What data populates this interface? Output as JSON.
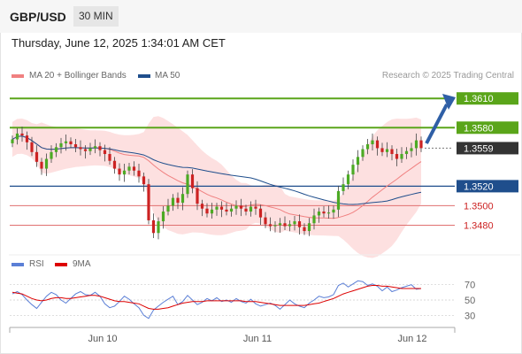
{
  "header": {
    "symbol": "GBP/USD",
    "interval": "30 MIN",
    "datetime": "Thursday, June 12, 2025 1:34:01 AM CET"
  },
  "legend": {
    "ma20_label": "MA 20 + Bollinger Bands",
    "ma50_label": "MA 50",
    "ma20_color": "#f08080",
    "ma50_color": "#1f4e8c",
    "credit": "Research © 2025 Trading Central"
  },
  "rsi_legend": {
    "rsi_label": "RSI",
    "ma_label": "9MA",
    "rsi_color": "#5b7fd6",
    "ma_color": "#dd0000"
  },
  "colors": {
    "resistance": "#5aa51a",
    "support": "#1f4e8c",
    "minor_support": "#e07070",
    "bull_candle": "#4caa24",
    "bear_candle": "#cc2222",
    "band_fill": "#fde0e0",
    "arrow": "#2f5fa6"
  },
  "chart_data": [
    {
      "type": "candlestick",
      "series": [
        {
          "name": "MA 20 + Bollinger Bands"
        },
        {
          "name": "MA 50"
        }
      ],
      "x_tick_labels": [
        "Jun 10",
        "Jun 11",
        "Jun 12"
      ],
      "ylim": [
        1.3455,
        1.3622
      ],
      "levels": [
        {
          "value": 1.361,
          "label": "1.3610",
          "kind": "resistance"
        },
        {
          "value": 1.358,
          "label": "1.3580",
          "kind": "resistance"
        },
        {
          "value": 1.3559,
          "label": "1.3559",
          "kind": "last"
        },
        {
          "value": 1.352,
          "label": "1.3520",
          "kind": "support"
        },
        {
          "value": 1.35,
          "label": "1.3500",
          "kind": "minor"
        },
        {
          "value": 1.348,
          "label": "1.3480",
          "kind": "minor"
        }
      ],
      "close_approx": [
        1.3568,
        1.3574,
        1.3572,
        1.3565,
        1.3555,
        1.3545,
        1.3538,
        1.3548,
        1.3555,
        1.356,
        1.3564,
        1.3566,
        1.3563,
        1.356,
        1.3558,
        1.3556,
        1.3559,
        1.3561,
        1.3557,
        1.3553,
        1.3546,
        1.3538,
        1.3532,
        1.3536,
        1.354,
        1.3536,
        1.353,
        1.3522,
        1.3485,
        1.3472,
        1.3484,
        1.3494,
        1.35,
        1.3508,
        1.3503,
        1.3512,
        1.3532,
        1.3518,
        1.3502,
        1.3497,
        1.3492,
        1.3496,
        1.3499,
        1.3496,
        1.3494,
        1.3497,
        1.35,
        1.3497,
        1.3494,
        1.3499,
        1.3497,
        1.3488,
        1.3481,
        1.3479,
        1.348,
        1.3482,
        1.3479,
        1.3481,
        1.3484,
        1.3478,
        1.3474,
        1.3482,
        1.349,
        1.3494,
        1.3492,
        1.3493,
        1.3496,
        1.3515,
        1.3522,
        1.3532,
        1.3542,
        1.355,
        1.3558,
        1.3563,
        1.3567,
        1.3559,
        1.3555,
        1.3558,
        1.3553,
        1.3548,
        1.3553,
        1.3556,
        1.3559,
        1.3567,
        1.3559
      ]
    },
    {
      "type": "line",
      "title": "RSI",
      "series": [
        {
          "name": "RSI",
          "values": [
            58,
            61,
            57,
            50,
            44,
            39,
            47,
            55,
            60,
            57,
            50,
            46,
            52,
            58,
            61,
            57,
            56,
            60,
            55,
            45,
            40,
            42,
            48,
            55,
            51,
            45,
            40,
            30,
            26,
            37,
            42,
            47,
            51,
            55,
            44,
            48,
            56,
            50,
            44,
            47,
            52,
            49,
            53,
            48,
            50,
            47,
            52,
            48,
            46,
            51,
            45,
            42,
            44,
            46,
            43,
            38,
            44,
            50,
            45,
            42,
            40,
            46,
            50,
            55,
            53,
            54,
            57,
            69,
            72,
            67,
            71,
            75,
            74,
            69,
            71,
            68,
            62,
            67,
            61,
            63,
            66,
            68,
            70,
            64,
            65
          ]
        },
        {
          "name": "9MA",
          "values": [
            60,
            59,
            58,
            55,
            52,
            50,
            49,
            50,
            52,
            53,
            53,
            52,
            52,
            53,
            54,
            55,
            56,
            56,
            55,
            53,
            51,
            49,
            48,
            48,
            47,
            46,
            45,
            42,
            39,
            38,
            38,
            39,
            40,
            42,
            44,
            46,
            47,
            48,
            48,
            48,
            49,
            49,
            49,
            49,
            49,
            49,
            49,
            49,
            48,
            48,
            48,
            47,
            46,
            45,
            44,
            43,
            43,
            43,
            43,
            43,
            43,
            44,
            45,
            46,
            48,
            50,
            52,
            55,
            58,
            60,
            62,
            64,
            66,
            68,
            69,
            69,
            68,
            68,
            67,
            66,
            65,
            65,
            65,
            65,
            65
          ]
        }
      ],
      "ylim": [
        20,
        80
      ],
      "y_ticks": [
        "70",
        "50",
        "30"
      ]
    }
  ]
}
